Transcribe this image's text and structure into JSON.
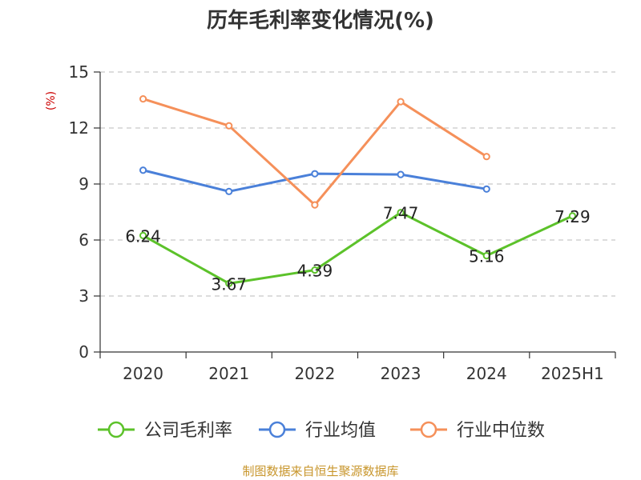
{
  "chart_data": {
    "type": "line",
    "title": "历年毛利率变化情况(%)",
    "ylabel": "(%)",
    "categories": [
      "2020",
      "2021",
      "2022",
      "2023",
      "2024",
      "2025H1"
    ],
    "ylim": [
      0,
      15
    ],
    "yticks": [
      0,
      3,
      6,
      9,
      12,
      15
    ],
    "grid": true,
    "legend_position": "bottom",
    "series": [
      {
        "name": "公司毛利率",
        "color": "#5cc22a",
        "values": [
          6.24,
          3.67,
          4.39,
          7.47,
          5.16,
          7.29
        ],
        "labels": [
          "6.24",
          "3.67",
          "4.39",
          "7.47",
          "5.16",
          "7.29"
        ]
      },
      {
        "name": "行业均值",
        "color": "#4a80d9",
        "values": [
          9.74,
          8.6,
          9.55,
          9.51,
          8.73,
          null
        ]
      },
      {
        "name": "行业中位数",
        "color": "#f5905a",
        "values": [
          13.56,
          12.12,
          7.88,
          13.41,
          10.47,
          null
        ]
      }
    ]
  },
  "source": {
    "text": "制图数据来自恒生聚源数据库",
    "color": "#c8962c"
  },
  "colors": {
    "ylabel": "#cc0000",
    "axis": "#333333",
    "grid": "#c8c8c8"
  }
}
